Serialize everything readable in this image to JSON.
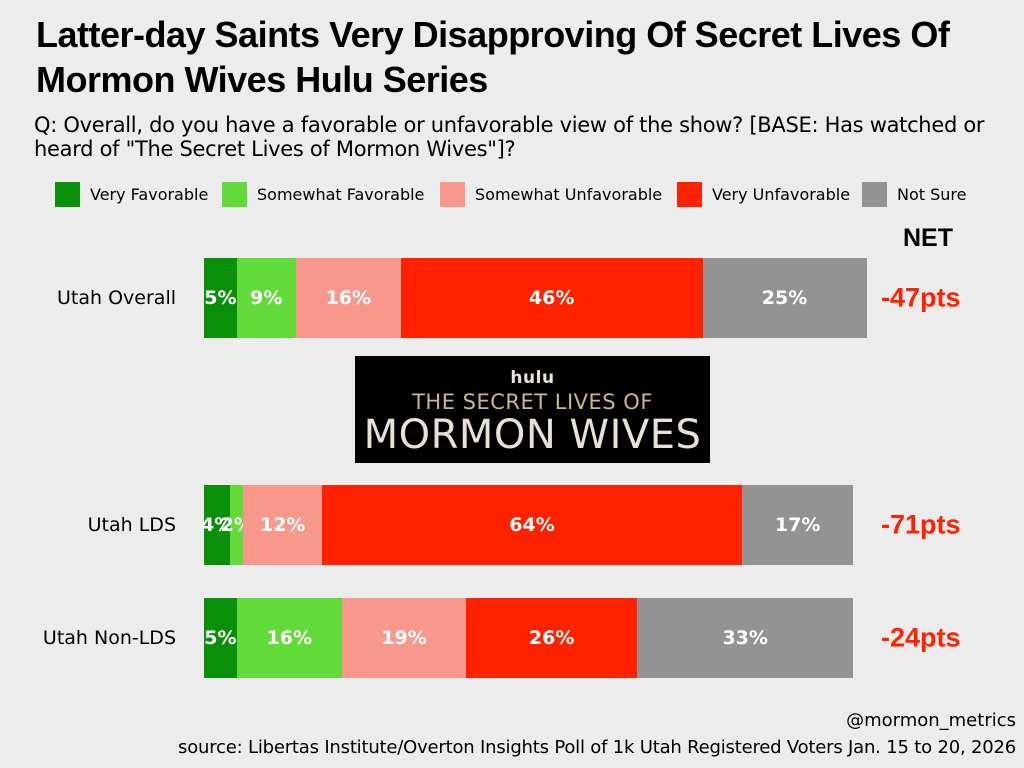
{
  "title": "Latter-day Saints Very Disapproving Of Secret Lives Of Mormon Wives Hulu Series",
  "subtitle": "Q: Overall, do you have a favorable or unfavorable view of the show? [BASE: Has watched or heard of \"The Secret Lives of Mormon Wives\"]?",
  "net_header": "NET",
  "logo": {
    "brand": "hulu",
    "line1": "THE SECRET LIVES OF",
    "line2": "MORMON WIVES"
  },
  "handle": "@mormon_metrics",
  "source": "source: Libertas Institute/Overton Insights Poll of 1k Utah Registered Voters Jan. 15 to 20, 2026",
  "chart_data": {
    "type": "bar",
    "orientation": "horizontal-stacked",
    "title": "Latter-day Saints Very Disapproving Of Secret Lives Of Mormon Wives Hulu Series",
    "legend_position": "top",
    "grid": false,
    "value_suffix": "%",
    "categories": [
      "Utah Overall",
      "Utah LDS",
      "Utah Non-LDS"
    ],
    "series": [
      {
        "name": "Very Favorable",
        "color": "#0a8f0a",
        "values": [
          5,
          4,
          5
        ]
      },
      {
        "name": "Somewhat Favorable",
        "color": "#62db3a",
        "values": [
          9,
          2,
          16
        ]
      },
      {
        "name": "Somewhat Unfavorable",
        "color": "#f8988c",
        "values": [
          16,
          12,
          19
        ]
      },
      {
        "name": "Very Unfavorable",
        "color": "#ff2200",
        "values": [
          46,
          64,
          26
        ]
      },
      {
        "name": "Not Sure",
        "color": "#939393",
        "values": [
          25,
          17,
          33
        ]
      }
    ],
    "net": [
      "-47pts",
      "-71pts",
      "-24pts"
    ]
  }
}
